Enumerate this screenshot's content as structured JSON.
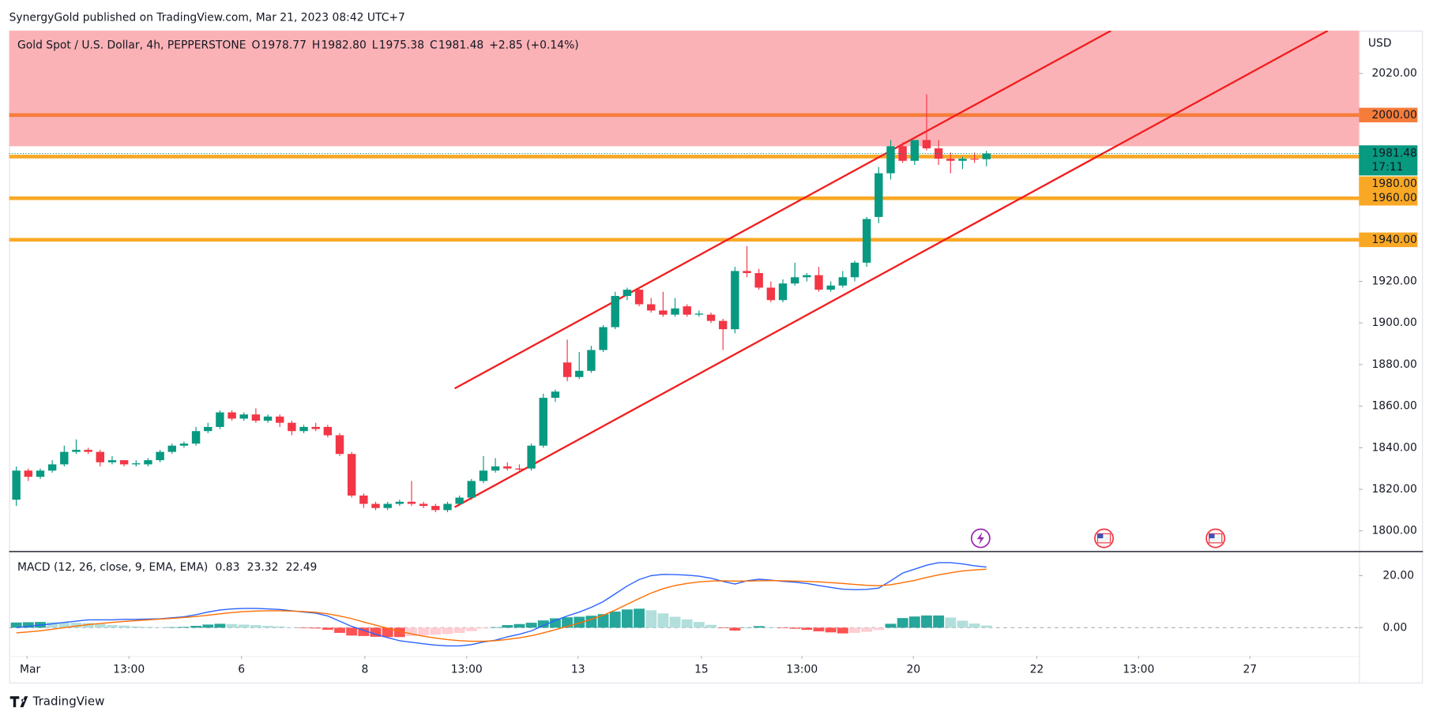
{
  "header": {
    "text": "SynergyGold published on TradingView.com, Mar 21, 2023 08:42 UTC+7"
  },
  "footer": {
    "brand": "TradingView"
  },
  "chart_data": [
    {
      "type": "candlestick",
      "title": "Gold Spot / U.S. Dollar, 4h, PEPPERSTONE",
      "currency": "USD",
      "legend_letters": [
        "O",
        "H",
        "L",
        "C"
      ],
      "legend_values": [
        "1978.77",
        "1982.80",
        "1975.38",
        "1981.48"
      ],
      "change": "+2.85 (+0.14%)",
      "last_price_label": "1981.48",
      "countdown": "17:11",
      "up_color": "#089981",
      "down_color": "#f23645",
      "open": [
        1815,
        1829,
        1826,
        1829,
        1832,
        1838,
        1839,
        1838,
        1833,
        1834,
        1832,
        1832,
        1834,
        1838,
        1841,
        1842,
        1848,
        1850,
        1857,
        1854,
        1856,
        1853,
        1855,
        1852,
        1848,
        1850,
        1850,
        1846,
        1837,
        1817,
        1813,
        1811,
        1813,
        1814,
        1813,
        1812,
        1810,
        1813,
        1816,
        1824,
        1829,
        1831,
        1830,
        1830,
        1841,
        1864,
        1881,
        1874,
        1877,
        1887,
        1898,
        1913,
        1916,
        1909,
        1906,
        1904,
        1908,
        1904,
        1904,
        1901,
        1897,
        1925,
        1924,
        1917,
        1911,
        1919,
        1922,
        1923,
        1916,
        1918,
        1922,
        1929,
        1951,
        1972,
        1985,
        1978,
        1988,
        1984,
        1979,
        1978,
        1979,
        1978.77
      ],
      "high": [
        1831,
        1830,
        1830,
        1834,
        1841,
        1844,
        1840,
        1839,
        1836,
        1834,
        1834,
        1835,
        1839,
        1842,
        1843,
        1850,
        1852,
        1858,
        1858,
        1857,
        1859,
        1856,
        1856,
        1853,
        1851,
        1852,
        1851,
        1847,
        1838,
        1818,
        1814,
        1814,
        1815,
        1824,
        1814,
        1813,
        1814,
        1817,
        1825,
        1836,
        1835,
        1833,
        1832,
        1842,
        1866,
        1868,
        1892,
        1886,
        1889,
        1899,
        1915,
        1917,
        1917,
        1912,
        1915,
        1912,
        1909,
        1906,
        1905,
        1902,
        1927,
        1937,
        1926,
        1920,
        1921,
        1929,
        1924,
        1927,
        1920,
        1925,
        1930,
        1951,
        1975,
        1988,
        1987,
        1988,
        2010,
        1988,
        1982,
        1980,
        1982,
        1982.8
      ],
      "low": [
        1812,
        1824,
        1825,
        1828,
        1831,
        1837,
        1837,
        1831,
        1832,
        1831,
        1831,
        1831,
        1833,
        1837,
        1840,
        1841,
        1847,
        1849,
        1853,
        1853,
        1852,
        1852,
        1850,
        1846,
        1847,
        1848,
        1845,
        1836,
        1816,
        1811,
        1810,
        1810,
        1812,
        1812,
        1811,
        1809,
        1809,
        1812,
        1815,
        1823,
        1828,
        1829,
        1829,
        1829,
        1840,
        1862,
        1872,
        1873,
        1876,
        1886,
        1897,
        1911,
        1908,
        1905,
        1903,
        1903,
        1903,
        1903,
        1900,
        1887,
        1895,
        1922,
        1916,
        1910,
        1910,
        1918,
        1920,
        1915,
        1915,
        1917,
        1920,
        1927,
        1948,
        1969,
        1977,
        1976,
        1983,
        1976,
        1972,
        1974,
        1977,
        1975.38
      ],
      "close": [
        1829,
        1826,
        1829,
        1832,
        1838,
        1839,
        1838,
        1833,
        1834,
        1832,
        1832.5,
        1834,
        1838,
        1841,
        1842,
        1848,
        1850,
        1857,
        1854,
        1856,
        1853,
        1855,
        1852,
        1848,
        1850,
        1849,
        1846,
        1837,
        1817,
        1813,
        1811,
        1813,
        1814,
        1813,
        1812,
        1810,
        1813,
        1816,
        1824,
        1829,
        1831,
        1830,
        1829.5,
        1841,
        1864,
        1867,
        1874,
        1877,
        1887,
        1898,
        1913,
        1916,
        1909,
        1906,
        1904,
        1907,
        1904,
        1904.5,
        1901,
        1897,
        1925,
        1924,
        1917,
        1911,
        1919,
        1922,
        1923,
        1916,
        1918,
        1922,
        1929,
        1950,
        1972,
        1985,
        1978,
        1988,
        1984,
        1979,
        1978,
        1979,
        1978.63,
        1981.48
      ],
      "zone": {
        "y": [
          1985,
          2040.6
        ],
        "color": "#fbb2b6"
      },
      "levels": [
        {
          "value": 2000,
          "label": "2000.00",
          "color": "#f57c3a"
        },
        {
          "value": 1980,
          "label": "1980.00",
          "color": "#f9a825"
        },
        {
          "value": 1960,
          "label": "1960.00",
          "color": "#f9a825"
        },
        {
          "value": 1940,
          "label": "1940.00",
          "color": "#f9a825"
        }
      ],
      "trendlines": [
        {
          "x": [
            36.6,
            91.4
          ],
          "y": [
            1868.5,
            2040.6
          ],
          "color": "#f21d1d"
        },
        {
          "x": [
            36.6,
            109.5
          ],
          "y": [
            1811.4,
            2040.6
          ],
          "color": "#f21d1d"
        }
      ],
      "xlim": [
        -0.6,
        112.1
      ],
      "xticks": [
        {
          "value": 0.9,
          "label": "Mar"
        },
        {
          "value": 9.4,
          "label": "13:00"
        },
        {
          "value": 18.8,
          "label": "6"
        },
        {
          "value": 29.1,
          "label": "8"
        },
        {
          "value": 37.6,
          "label": "13:00"
        },
        {
          "value": 46.9,
          "label": "13"
        },
        {
          "value": 57.2,
          "label": "15"
        },
        {
          "value": 65.6,
          "label": "13:00"
        },
        {
          "value": 74.9,
          "label": "20"
        },
        {
          "value": 85.2,
          "label": "22"
        },
        {
          "value": 93.7,
          "label": "13:00"
        },
        {
          "value": 103,
          "label": "27"
        }
      ],
      "ylim": [
        1790.3,
        2040.6
      ],
      "yticks": [
        {
          "value": 1800,
          "label": "1800.00"
        },
        {
          "value": 1820,
          "label": "1820.00"
        },
        {
          "value": 1840,
          "label": "1840.00"
        },
        {
          "value": 1860,
          "label": "1860.00"
        },
        {
          "value": 1880,
          "label": "1880.00"
        },
        {
          "value": 1900,
          "label": "1900.00"
        },
        {
          "value": 1920,
          "label": "1920.00"
        },
        {
          "value": 1940,
          "label": "1940.00"
        },
        {
          "value": 1960,
          "label": "1960.00"
        },
        {
          "value": 1980,
          "label": "1980.00"
        },
        {
          "value": 2000,
          "label": "2000.00"
        },
        {
          "value": 2020,
          "label": "2020.00"
        }
      ]
    },
    {
      "type": "macd",
      "title": "MACD (12, 26, close, 9, EMA, EMA)",
      "histogram": {
        "values": [
          2,
          2.1,
          2.2,
          2.1,
          2,
          1.9,
          1.8,
          1.4,
          1,
          0.8,
          0.5,
          0.3,
          0.1,
          0.2,
          0.3,
          0.7,
          1.2,
          1.5,
          1.4,
          1.2,
          1,
          0.7,
          0.5,
          0.1,
          -0.2,
          -0.3,
          -0.8,
          -2,
          -3,
          -3.2,
          -3.5,
          -3.6,
          -3.6,
          -3.2,
          -2.9,
          -2.7,
          -2.4,
          -2,
          -1.3,
          -0.3,
          0.2,
          1,
          1.4,
          1.9,
          2.8,
          3.6,
          4,
          4.2,
          4.6,
          5.2,
          6.2,
          7,
          7.3,
          6.7,
          5.5,
          4.2,
          3.2,
          2.2,
          1.1,
          -0.2,
          -1.1,
          0.1,
          0.6,
          0.2,
          -0.2,
          -0.4,
          -0.8,
          -1.4,
          -1.8,
          -2.2,
          -2,
          -1.6,
          -0.9,
          1.5,
          3.7,
          4.3,
          4.7,
          4.7,
          3.9,
          2.7,
          1.6,
          0.83
        ],
        "value_label": "0.83",
        "colors": [
          "#26a69a",
          "#b2dfdb",
          "#ff5252",
          "#ffcdd2"
        ],
        "label_color": "#80cbc4"
      },
      "macd": {
        "color": "#2962ff",
        "value_label": "23.32",
        "values": [
          0,
          0.5,
          1,
          1.5,
          2,
          2.5,
          3,
          3,
          3,
          3.2,
          3.2,
          3.3,
          3.4,
          3.8,
          4.2,
          5,
          6,
          6.8,
          7.2,
          7.4,
          7.4,
          7.2,
          7,
          6.5,
          6,
          5.6,
          4.5,
          2.5,
          0.5,
          -1,
          -2.5,
          -3.8,
          -5,
          -5.6,
          -6.2,
          -6.7,
          -7,
          -7,
          -6.5,
          -5.5,
          -4.8,
          -3.5,
          -2.5,
          -1.2,
          0.8,
          2.8,
          4.5,
          6,
          7.8,
          10,
          13,
          16,
          18.5,
          20,
          20.5,
          20.4,
          20.2,
          19.8,
          19,
          17.8,
          16.8,
          18,
          18.6,
          18.3,
          17.8,
          17.5,
          17,
          16.2,
          15.5,
          14.8,
          14.6,
          14.7,
          15.2,
          18,
          21,
          22.5,
          24,
          25,
          25,
          24.5,
          23.8,
          23.32
        ]
      },
      "signal": {
        "color": "#ff6d00",
        "value_label": "22.49",
        "values": [
          -2,
          -1.6,
          -1.2,
          -0.6,
          0,
          0.6,
          1.2,
          1.6,
          2,
          2.4,
          2.7,
          3,
          3.3,
          3.6,
          3.9,
          4.3,
          4.8,
          5.3,
          5.8,
          6.2,
          6.4,
          6.5,
          6.5,
          6.4,
          6.2,
          5.9,
          5.3,
          4.5,
          3.5,
          2.2,
          1,
          -0.2,
          -1.4,
          -2.4,
          -3.3,
          -4,
          -4.6,
          -5,
          -5.2,
          -5.2,
          -5,
          -4.5,
          -3.9,
          -3.1,
          -2,
          -0.8,
          0.5,
          1.8,
          3.2,
          4.8,
          6.8,
          9,
          11.2,
          13.3,
          15,
          16.2,
          17,
          17.6,
          17.9,
          18,
          17.9,
          17.9,
          18,
          18.1,
          18,
          17.9,
          17.8,
          17.6,
          17.3,
          17,
          16.6,
          16.3,
          16.1,
          16.5,
          17.3,
          18.2,
          19.3,
          20.3,
          21.1,
          21.8,
          22.2,
          22.49
        ]
      },
      "ylim": [
        -10.9,
        29.1
      ],
      "yticks": [
        {
          "value": 0,
          "label": "0.00"
        },
        {
          "value": 20,
          "label": "20.00"
        }
      ]
    }
  ]
}
